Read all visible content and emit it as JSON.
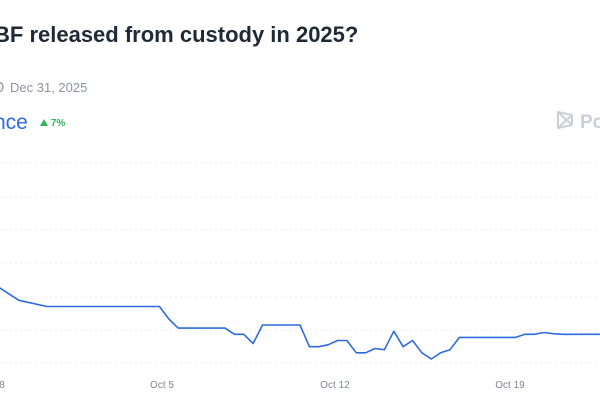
{
  "market": {
    "title": "BF released from custody in 2025?",
    "end_date": "Dec 31, 2025",
    "outcome_label": "nce",
    "change": "7%",
    "brand": "Po"
  },
  "icons": {
    "clock": "clock-icon",
    "change": "triangle-up-icon",
    "brand": "polymarket-logo-icon"
  },
  "colors": {
    "line": "#2d6bdf",
    "up": "#31b556",
    "grid": "#e6eaee",
    "watermark": "#c9cfd6"
  },
  "chart_data": {
    "type": "line",
    "x_ticks": [
      "8",
      "Oct 5",
      "Oct 12",
      "Oct 19"
    ],
    "grid": true,
    "series": [
      {
        "color": "#2d6bdf",
        "points": [
          [
            0,
            0.35
          ],
          [
            2,
            0.33
          ],
          [
            5,
            0.32
          ],
          [
            8,
            0.32
          ],
          [
            10,
            0.32
          ],
          [
            11,
            0.32
          ],
          [
            14,
            0.32
          ],
          [
            16,
            0.32
          ],
          [
            17,
            0.32
          ],
          [
            18,
            0.3
          ],
          [
            19,
            0.285
          ],
          [
            20,
            0.285
          ],
          [
            22,
            0.285
          ],
          [
            24,
            0.285
          ],
          [
            25,
            0.275
          ],
          [
            26,
            0.275
          ],
          [
            27,
            0.26
          ],
          [
            28,
            0.29
          ],
          [
            29,
            0.29
          ],
          [
            31,
            0.29
          ],
          [
            32,
            0.29
          ],
          [
            33,
            0.255
          ],
          [
            34,
            0.255
          ],
          [
            35,
            0.258
          ],
          [
            36,
            0.265
          ],
          [
            37,
            0.265
          ],
          [
            38,
            0.245
          ],
          [
            39,
            0.245
          ],
          [
            40,
            0.252
          ],
          [
            41,
            0.25
          ],
          [
            42,
            0.28
          ],
          [
            43,
            0.255
          ],
          [
            44,
            0.265
          ],
          [
            45,
            0.245
          ],
          [
            46,
            0.235
          ],
          [
            47,
            0.245
          ],
          [
            48,
            0.25
          ],
          [
            49,
            0.27
          ],
          [
            50,
            0.27
          ],
          [
            52,
            0.27
          ],
          [
            54,
            0.27
          ],
          [
            55,
            0.27
          ],
          [
            56,
            0.275
          ],
          [
            57,
            0.275
          ],
          [
            58,
            0.278
          ],
          [
            59,
            0.276
          ],
          [
            60,
            0.275
          ],
          [
            62,
            0.275
          ],
          [
            64,
            0.275
          ]
        ]
      }
    ]
  }
}
